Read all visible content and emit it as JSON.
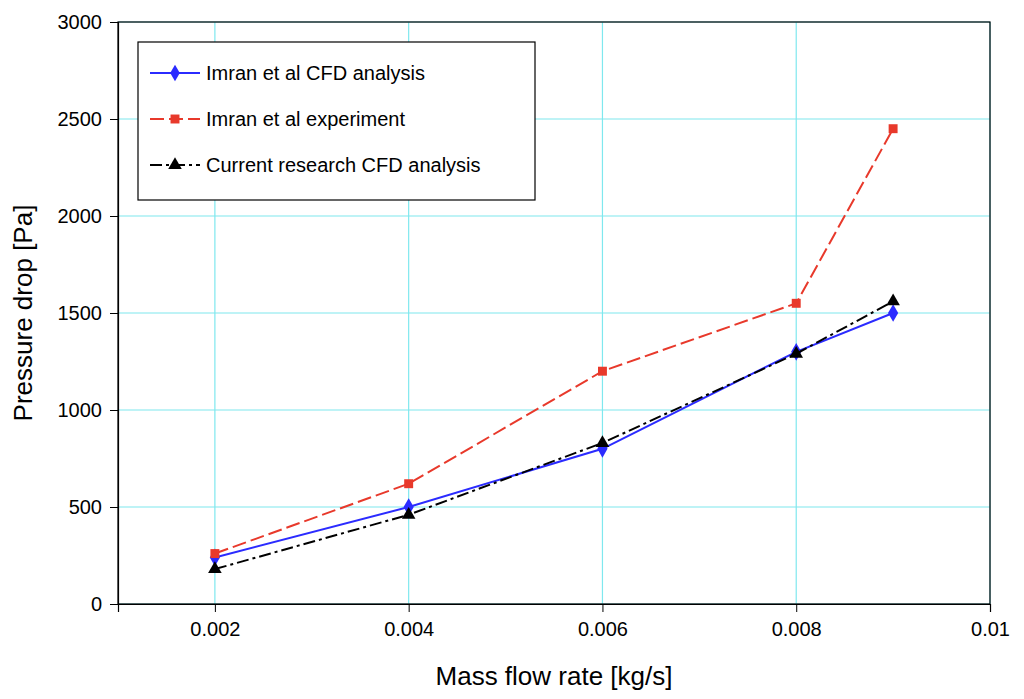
{
  "chart_data": {
    "type": "line",
    "x_label": "Mass flow rate [kg/s]",
    "y_label": "Pressure drop [Pa]",
    "x": [
      0.002,
      0.004,
      0.006,
      0.008,
      0.009
    ],
    "series": [
      {
        "name": "Imran et al CFD analysis",
        "color": "#2b2bff",
        "marker": "diamond",
        "line_style": "solid",
        "values": [
          240,
          500,
          800,
          1300,
          1500
        ]
      },
      {
        "name": "Imran et al experiment",
        "color": "#e8392b",
        "marker": "square",
        "line_style": "dashed",
        "values": [
          260,
          620,
          1200,
          1550,
          2450
        ]
      },
      {
        "name": "Current research CFD analysis",
        "color": "#000000",
        "marker": "triangle",
        "line_style": "dashdot",
        "values": [
          180,
          460,
          830,
          1290,
          1560
        ]
      }
    ],
    "xlim": [
      0.001,
      0.01
    ],
    "xticks": [
      0.002,
      0.004,
      0.006,
      0.008,
      0.01
    ],
    "ylim": [
      0,
      3000
    ],
    "yticks": [
      0,
      500,
      1000,
      1500,
      2000,
      2500,
      3000
    ],
    "grid": true,
    "legend": "upper left"
  }
}
